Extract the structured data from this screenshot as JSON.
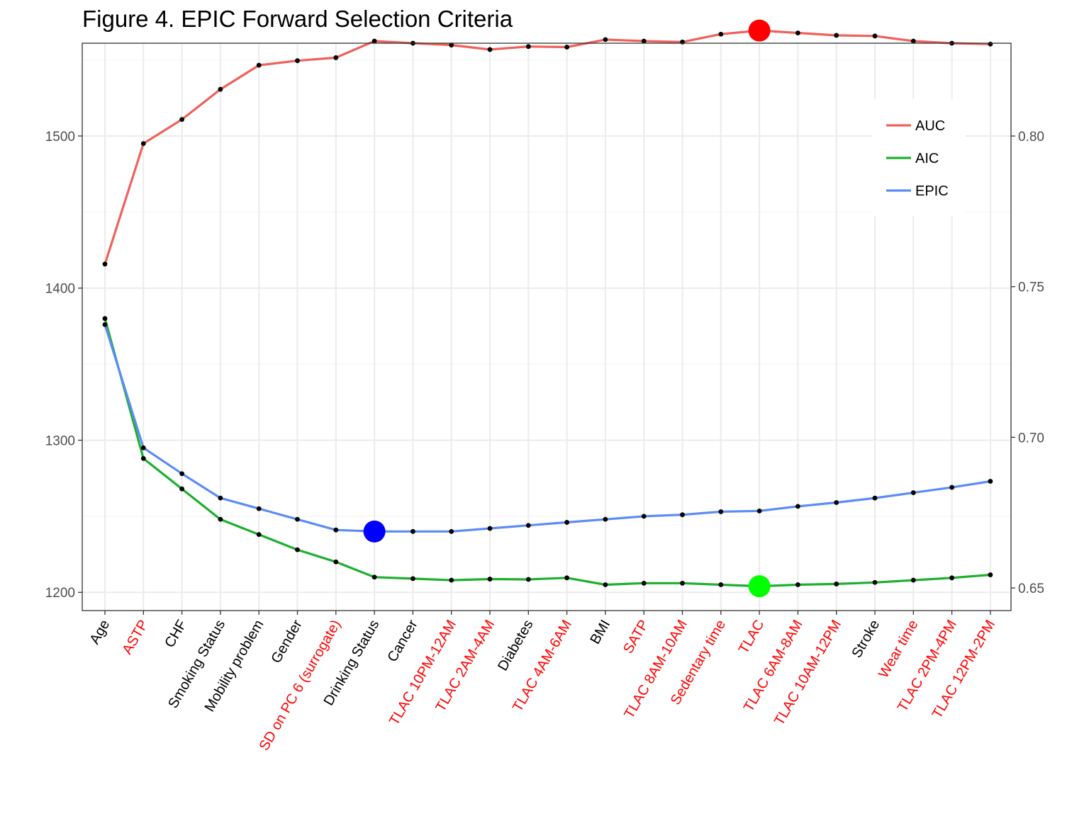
{
  "chart_data": {
    "type": "line",
    "title": "Figure 4. EPIC Forward Selection Criteria",
    "xlabel": "",
    "ylabel": "",
    "categories": [
      "Age",
      "ASTP",
      "CHF",
      "Smoking Status",
      "Mobility problem",
      "Gender",
      "SD on PC 6 (surrogate)",
      "Drinking Status",
      "Cancer",
      "TLAC 10PM-12AM",
      "TLAC 2AM-4AM",
      "Diabetes",
      "TLAC 4AM-6AM",
      "BMI",
      "SATP",
      "TLAC 8AM-10AM",
      "Sedentary time",
      "TLAC",
      "TLAC 6AM-8AM",
      "TLAC 10AM-12PM",
      "Stroke",
      "Wear time",
      "TLAC 2PM-4PM",
      "TLAC 12PM-2PM"
    ],
    "category_colors": [
      "#000000",
      "#ff0000",
      "#000000",
      "#000000",
      "#000000",
      "#000000",
      "#ff0000",
      "#000000",
      "#000000",
      "#ff0000",
      "#ff0000",
      "#000000",
      "#ff0000",
      "#000000",
      "#ff0000",
      "#ff0000",
      "#ff0000",
      "#ff0000",
      "#ff0000",
      "#ff0000",
      "#000000",
      "#ff0000",
      "#ff0000",
      "#ff0000"
    ],
    "y_left": {
      "lim": [
        1188,
        1561
      ],
      "ticks": [
        1200,
        1300,
        1400,
        1500
      ]
    },
    "y_right": {
      "lim": [
        0.6425,
        0.8308
      ],
      "ticks": [
        "0.65",
        "0.70",
        "0.75",
        "0.80"
      ]
    },
    "series": [
      {
        "name": "AUC",
        "color": "#f0605a",
        "axis": "right",
        "values": [
          0.7575,
          0.7975,
          0.8055,
          0.8155,
          0.8235,
          0.825,
          0.826,
          0.8315,
          0.8308,
          0.8302,
          0.8287,
          0.8297,
          0.8295,
          0.832,
          0.8315,
          0.8312,
          0.8338,
          0.835,
          0.8342,
          0.8334,
          0.8332,
          0.8315,
          0.8308,
          0.8305
        ],
        "highlight": {
          "index": 17,
          "color": "#ff0000"
        }
      },
      {
        "name": "AIC",
        "color": "#1daf2e",
        "axis": "left",
        "values": [
          1380,
          1288,
          1268,
          1248,
          1238,
          1228,
          1220,
          1210,
          1209,
          1208,
          1208.7,
          1208.5,
          1209.5,
          1205,
          1206,
          1206,
          1205,
          1204,
          1205,
          1205.5,
          1206.5,
          1208,
          1209.5,
          1211.5
        ],
        "highlight": {
          "index": 17,
          "color": "#00ff00"
        }
      },
      {
        "name": "EPIC",
        "color": "#5b8cf5",
        "axis": "left",
        "values": [
          1376,
          1295,
          1278,
          1262,
          1255,
          1248,
          1241,
          1240,
          1240,
          1240,
          1242,
          1244,
          1246,
          1248,
          1250,
          1251,
          1253,
          1253.5,
          1256.5,
          1259,
          1262,
          1265.5,
          1269,
          1273
        ],
        "highlight": {
          "index": 7,
          "color": "#0000ff"
        }
      }
    ],
    "legend": {
      "position": "top-right",
      "entries": [
        "AUC",
        "AIC",
        "EPIC"
      ]
    },
    "grid": true
  }
}
